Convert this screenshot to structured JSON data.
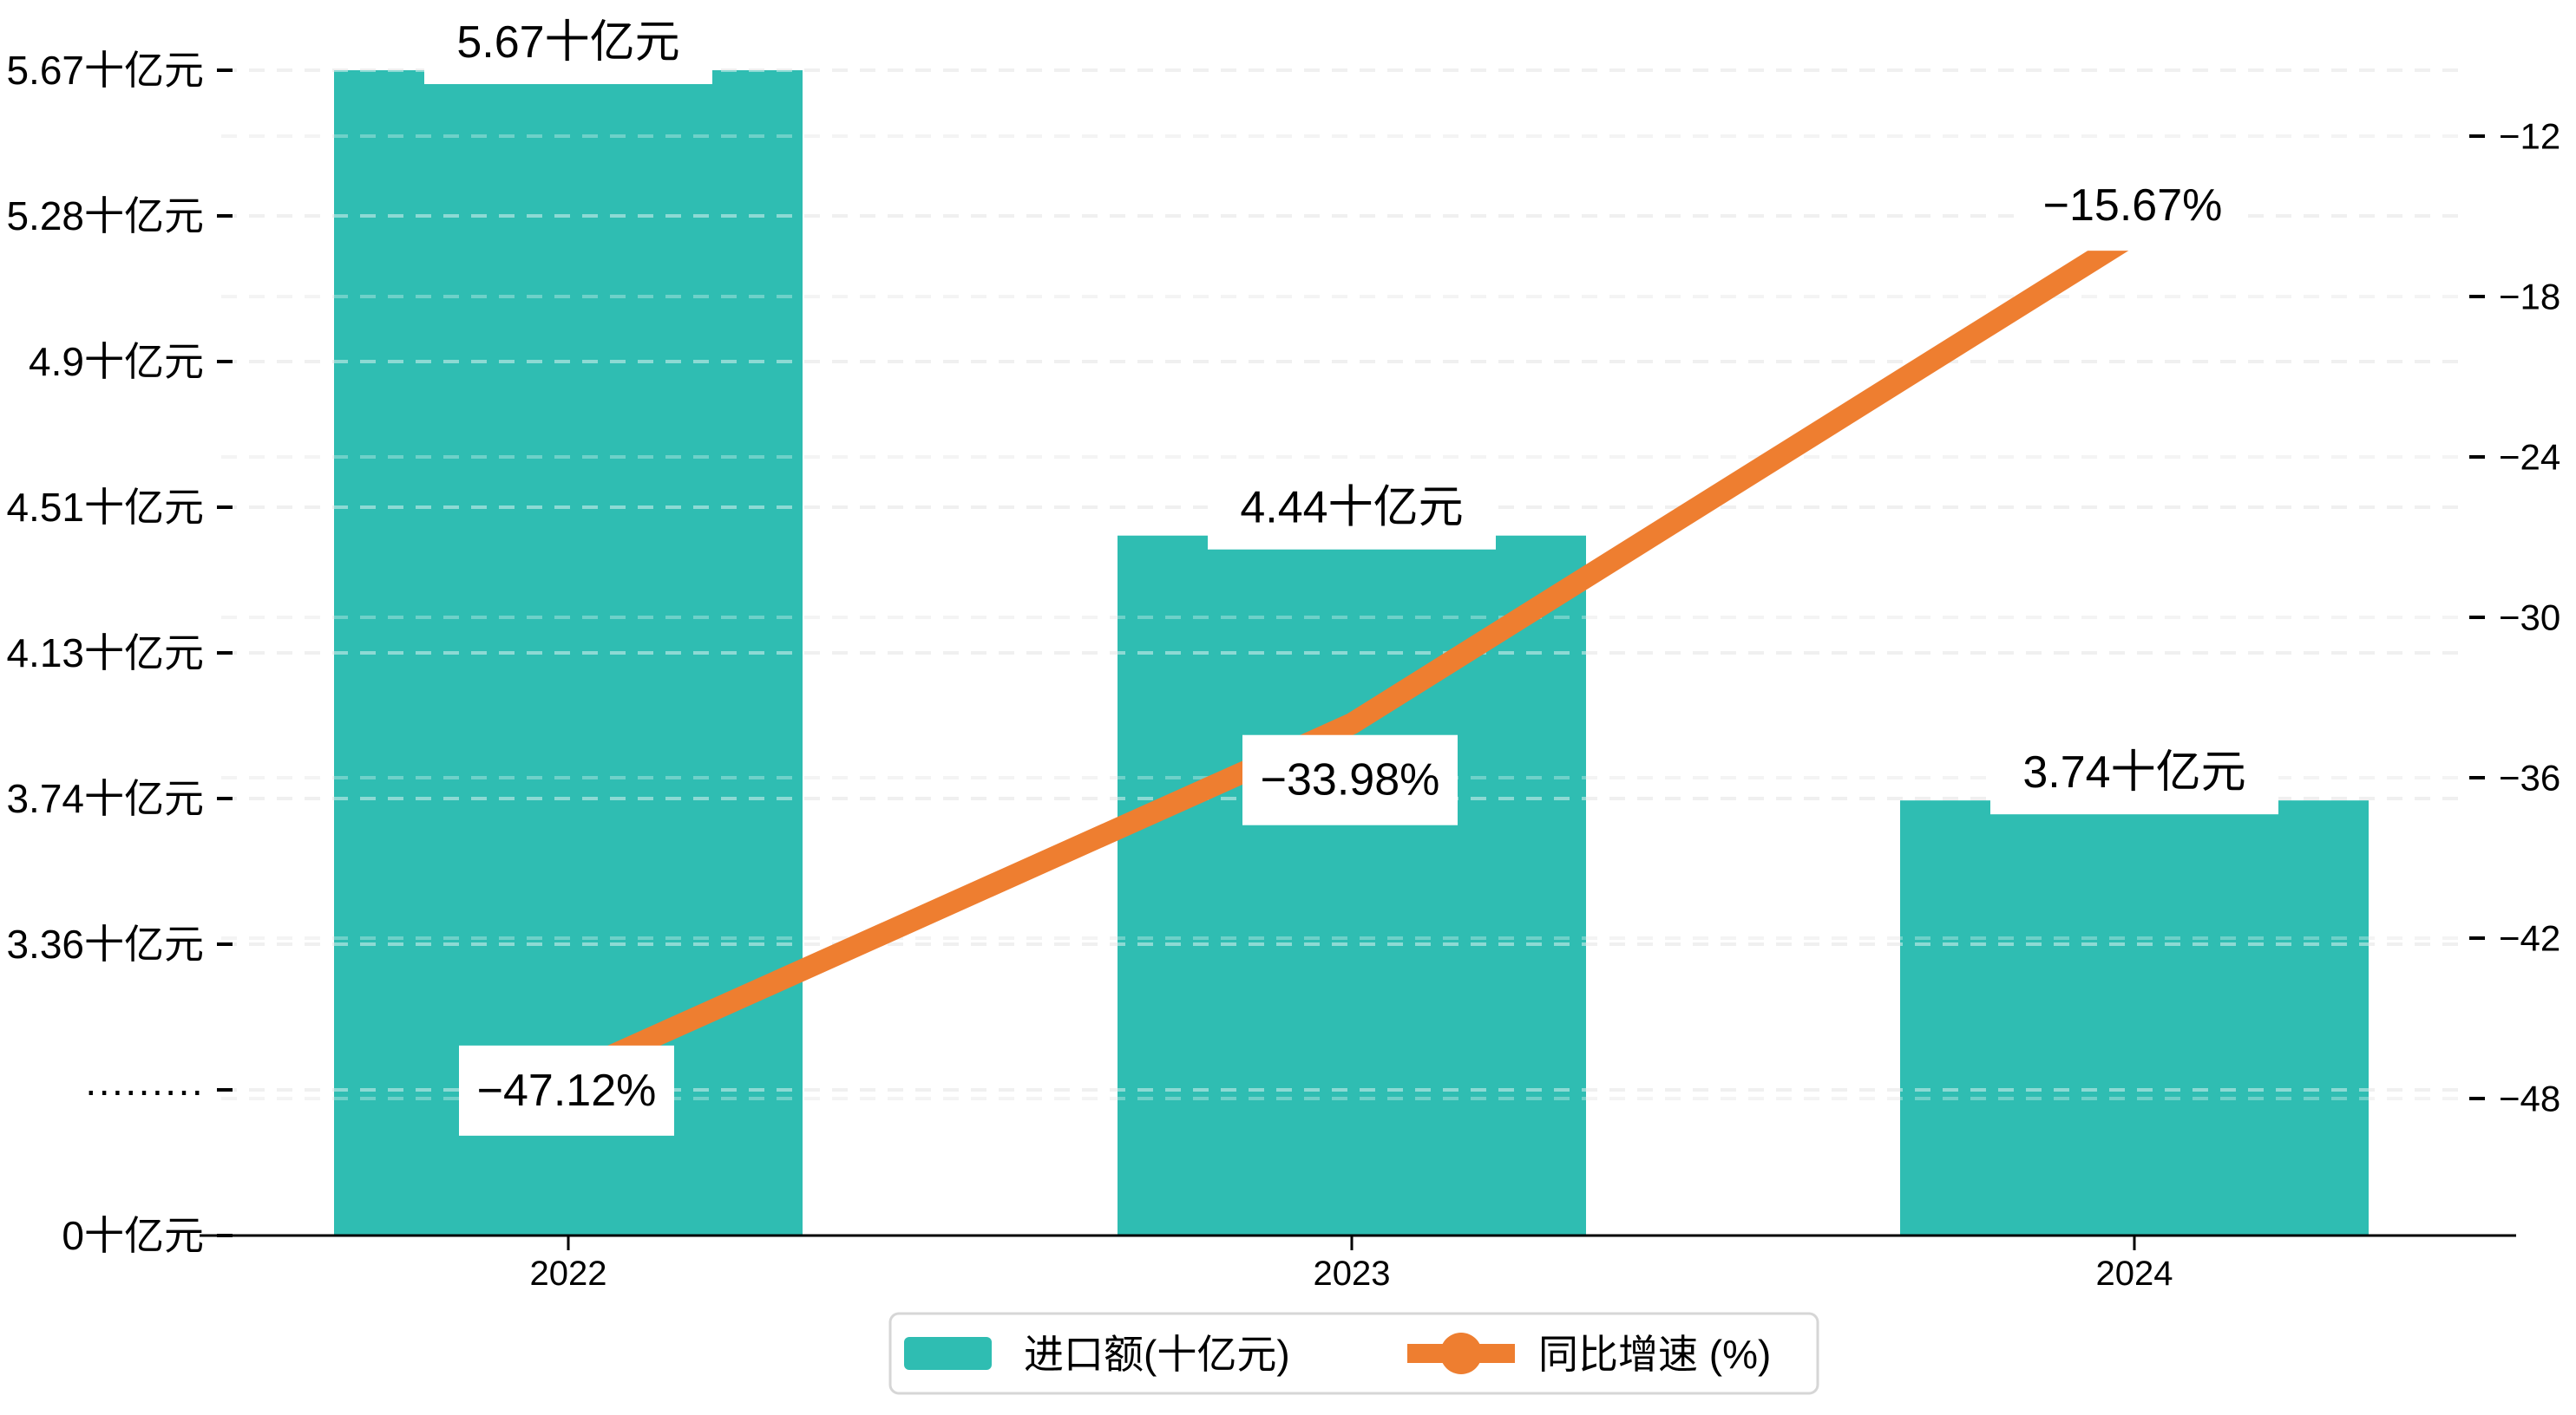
{
  "chart_data": {
    "type": "combo-bar-line",
    "categories": [
      "2022",
      "2023",
      "2024"
    ],
    "series": [
      {
        "name": "进口额(十亿元)",
        "type": "bar",
        "values": [
          5.67,
          4.44,
          3.74
        ],
        "data_labels": [
          "5.67十亿元",
          "4.44十亿元",
          "3.74十亿元"
        ],
        "color": "#2FBDB2"
      },
      {
        "name": "同比增速 (%)",
        "type": "line",
        "values": [
          -47.12,
          -33.98,
          -15.67
        ],
        "data_labels": [
          "−47.12%",
          "−33.98%",
          "−15.67%"
        ],
        "color": "#EE7E30"
      }
    ],
    "left_axis": {
      "unit": "十亿元",
      "tick_labels": [
        "5.67十亿元",
        "5.28十亿元",
        "4.9十亿元",
        "4.51十亿元",
        "4.13十亿元",
        "3.74十亿元",
        "3.36十亿元",
        "·········",
        "0十亿元"
      ],
      "tick_values": [
        5.67,
        5.28,
        4.9,
        4.51,
        4.13,
        3.74,
        3.36,
        null,
        0
      ],
      "broken_axis": true
    },
    "right_axis": {
      "tick_labels": [
        "−12",
        "−18",
        "−24",
        "−30",
        "−36",
        "−42",
        "−48"
      ],
      "tick_values": [
        -12,
        -18,
        -24,
        -30,
        -36,
        -42,
        -48
      ]
    },
    "x_axis": {
      "tick_labels": [
        "2022",
        "2023",
        "2024"
      ]
    },
    "legend": {
      "items": [
        {
          "label": "进口额(十亿元)",
          "marker": "bar-swatch",
          "color": "#2FBDB2"
        },
        {
          "label": "同比增速 (%)",
          "marker": "line-dot",
          "color": "#EE7E30"
        }
      ]
    },
    "grid": {
      "horizontal_dashed": true
    },
    "colors": {
      "bar": "#2FBDB2",
      "line": "#EE7E30",
      "text": "#000000",
      "axis_line": "#000000",
      "grid_left": "#e4e4e4",
      "grid_right": "#f0f0f0",
      "label_box": "#ffffff",
      "legend_border": "#d6d6d6",
      "background": "#ffffff"
    }
  }
}
